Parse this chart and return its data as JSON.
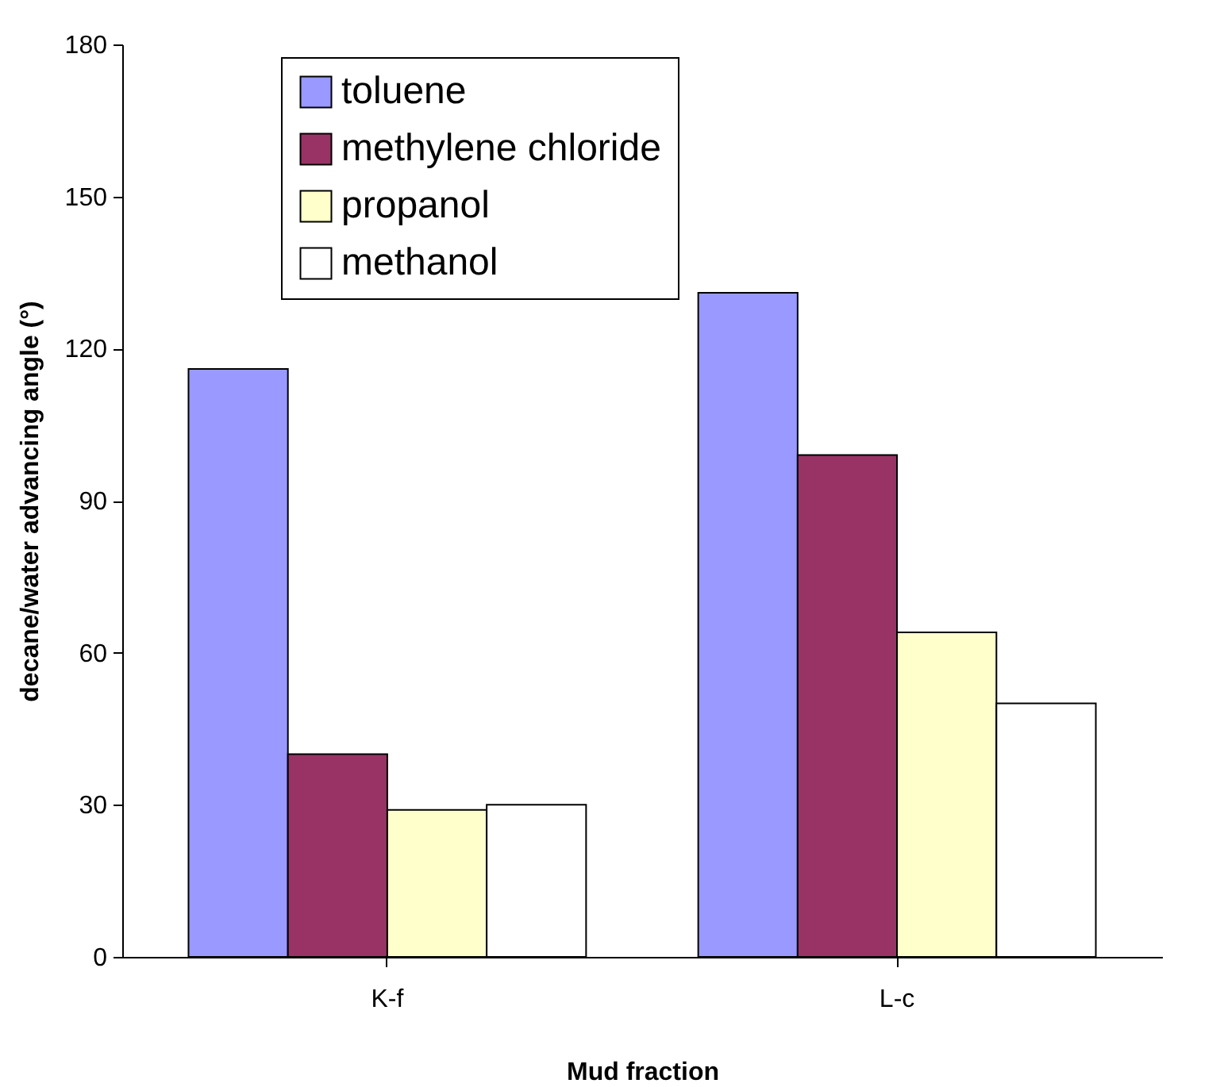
{
  "chart_data": {
    "type": "bar",
    "xlabel": "Mud fraction",
    "ylabel": "decane/water advancing angle (°)",
    "categories": [
      "K-f",
      "L-c"
    ],
    "series": [
      {
        "name": "toluene",
        "color": "#9999ff",
        "values": [
          116,
          131
        ]
      },
      {
        "name": "methylene chloride",
        "color": "#993366",
        "values": [
          40,
          99
        ]
      },
      {
        "name": "propanol",
        "color": "#ffffcc",
        "values": [
          29,
          64
        ]
      },
      {
        "name": "methanol",
        "color": "#ffffff",
        "values": [
          30,
          50
        ]
      }
    ],
    "ylim": [
      0,
      180
    ],
    "yticks": [
      0,
      30,
      60,
      90,
      120,
      150,
      180
    ],
    "grid": false,
    "legend": "top left"
  }
}
